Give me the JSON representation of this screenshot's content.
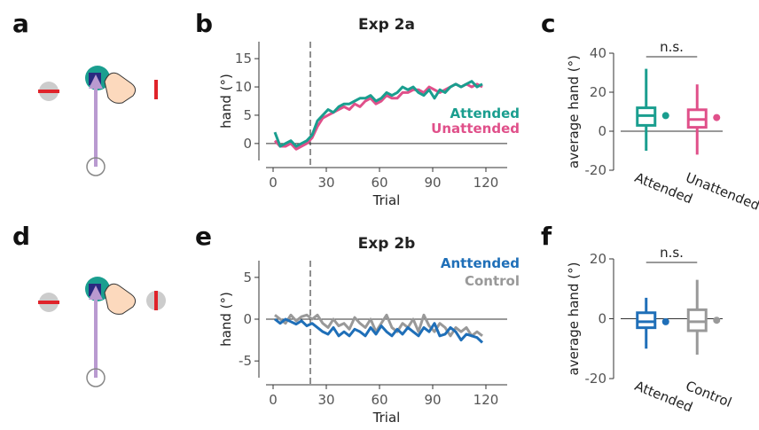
{
  "panel_labels": [
    "a",
    "b",
    "c",
    "d",
    "e",
    "f"
  ],
  "chart_data": [
    {
      "type": "line",
      "title": "Exp 2a",
      "xlabel": "Trial",
      "ylabel": "hand (°)",
      "xlim": [
        -4,
        132
      ],
      "xticks": [
        0,
        30,
        60,
        90,
        120
      ],
      "ylim": [
        -3,
        18
      ],
      "yticks": [
        0,
        5,
        10,
        15
      ],
      "vline": 21,
      "hline": 0,
      "x": [
        1,
        4,
        7,
        10,
        13,
        16,
        19,
        22,
        25,
        28,
        31,
        34,
        37,
        40,
        43,
        46,
        49,
        52,
        55,
        58,
        61,
        64,
        67,
        70,
        73,
        76,
        79,
        82,
        85,
        88,
        91,
        94,
        97,
        100,
        103,
        106,
        109,
        112,
        115,
        118
      ],
      "series": [
        {
          "name": "Unattended",
          "color": "#e0508a",
          "values": [
            0.5,
            -0.5,
            -0.5,
            0,
            -1,
            -0.5,
            0,
            1,
            3,
            4.5,
            5,
            5.5,
            6,
            6.5,
            6,
            7,
            6.5,
            7.5,
            8,
            7,
            7.5,
            8.5,
            8,
            8,
            9,
            9,
            9.5,
            9.5,
            9,
            10,
            9.5,
            9,
            9.5,
            10,
            10.5,
            10,
            10.5,
            10,
            10.5,
            10
          ]
        },
        {
          "name": "Attended",
          "color": "#1a9e8f",
          "values": [
            2,
            -0.5,
            0,
            0.5,
            -0.5,
            0,
            0.5,
            1.5,
            4,
            5,
            6,
            5.5,
            6.5,
            7,
            7,
            7.5,
            8,
            8,
            8.5,
            7.5,
            8,
            9,
            8.5,
            9,
            10,
            9.5,
            10,
            9,
            8.5,
            9.5,
            8,
            9.5,
            9,
            10,
            10.5,
            10,
            10.5,
            11,
            10,
            10.5
          ]
        }
      ]
    },
    {
      "type": "box",
      "ylabel": "average hand (°)",
      "annotation": "n.s.",
      "ylim": [
        -20,
        40
      ],
      "yticks": [
        -20,
        0,
        20,
        40
      ],
      "hline": 0,
      "categories": [
        "Attended",
        "Unattended"
      ],
      "boxes": [
        {
          "color": "#1a9e8f",
          "whisker_low": -10,
          "q1": 3,
          "median": 8,
          "q3": 12,
          "whisker_high": 32,
          "mean": 8
        },
        {
          "color": "#e0508a",
          "whisker_low": -12,
          "q1": 2,
          "median": 6,
          "q3": 11,
          "whisker_high": 24,
          "mean": 7
        }
      ]
    },
    {
      "type": "line",
      "title": "Exp 2b",
      "xlabel": "Trial",
      "ylabel": "hand (°)",
      "xlim": [
        -4,
        132
      ],
      "xticks": [
        0,
        30,
        60,
        90,
        120
      ],
      "ylim": [
        -7,
        7
      ],
      "yticks": [
        -5,
        0,
        5
      ],
      "vline": 21,
      "hline": 0,
      "x": [
        1,
        4,
        7,
        10,
        13,
        16,
        19,
        22,
        25,
        28,
        31,
        34,
        37,
        40,
        43,
        46,
        49,
        52,
        55,
        58,
        61,
        64,
        67,
        70,
        73,
        76,
        79,
        82,
        85,
        88,
        91,
        94,
        97,
        100,
        103,
        106,
        109,
        112,
        115,
        118
      ],
      "series": [
        {
          "name": "Control",
          "color": "#999999",
          "values": [
            0.5,
            0,
            -0.5,
            0.5,
            -0.2,
            0.3,
            0.5,
            0,
            0.5,
            -0.5,
            -1,
            0,
            -0.8,
            -0.5,
            -1.2,
            0.2,
            -0.5,
            -1,
            0,
            -1.5,
            -0.5,
            0.5,
            -1,
            -1.5,
            -0.5,
            -1,
            0,
            -1.5,
            0.5,
            -0.8,
            -1.5,
            -0.5,
            -1,
            -2,
            -1,
            -1.5,
            -1,
            -2,
            -1.5,
            -2
          ]
        },
        {
          "name": "Anttended",
          "color": "#1f6fb8",
          "values": [
            0,
            -0.5,
            0,
            -0.3,
            -0.6,
            -0.2,
            -0.8,
            -0.5,
            -1,
            -1.5,
            -1.8,
            -1,
            -2,
            -1.5,
            -2,
            -1.2,
            -1.5,
            -2,
            -1,
            -1.8,
            -0.8,
            -1.5,
            -2,
            -1.2,
            -1.8,
            -1,
            -1.5,
            -2,
            -1,
            -1.5,
            -0.5,
            -2,
            -1.8,
            -1,
            -1.5,
            -2.5,
            -1.8,
            -2,
            -2.2,
            -2.8
          ]
        }
      ]
    },
    {
      "type": "box",
      "ylabel": "average hand (°)",
      "annotation": "n.s.",
      "ylim": [
        -20,
        20
      ],
      "yticks": [
        -20,
        0,
        20
      ],
      "hline": 0,
      "categories": [
        "Attended",
        "Control"
      ],
      "boxes": [
        {
          "color": "#1f6fb8",
          "whisker_low": -10,
          "q1": -3,
          "median": -1,
          "q3": 2,
          "whisker_high": 7,
          "mean": -1
        },
        {
          "color": "#999999",
          "whisker_low": -12,
          "q1": -4,
          "median": -1,
          "q3": 3,
          "whisker_high": 13,
          "mean": -0.5
        }
      ]
    }
  ]
}
